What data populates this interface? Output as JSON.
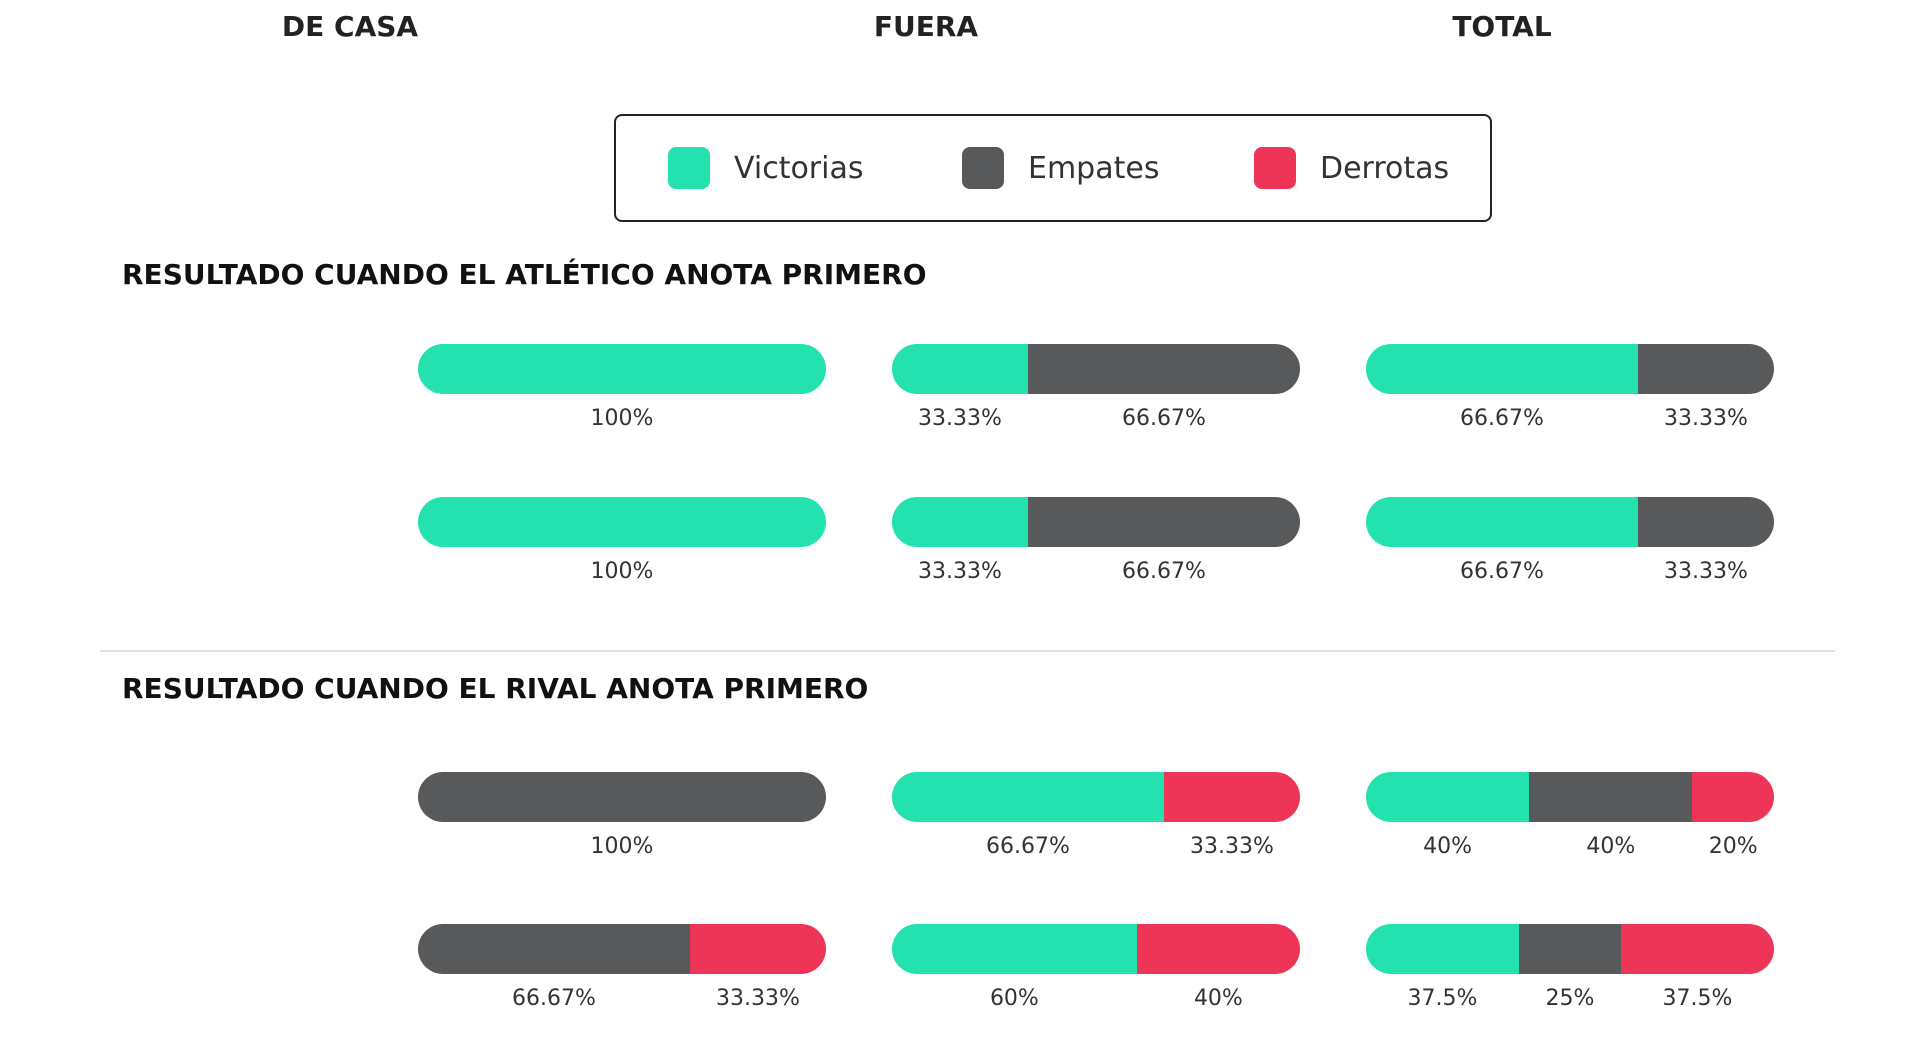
{
  "columns": [
    "DE CASA",
    "FUERA",
    "TOTAL"
  ],
  "legend": [
    {
      "label": "Victorias",
      "color": "#23e2b0"
    },
    {
      "label": "Empates",
      "color": "#58595b"
    },
    {
      "label": "Derrotas",
      "color": "#ee3558"
    }
  ],
  "sections": [
    {
      "title": "RESULTADO CUANDO EL ATLÉTICO ANOTA PRIMERO"
    },
    {
      "title": "RESULTADO CUANDO EL RIVAL ANOTA PRIMERO"
    }
  ],
  "chart_data": {
    "type": "bar",
    "orientation": "horizontal-stacked-100",
    "series_names": [
      "Victorias",
      "Empates",
      "Derrotas"
    ],
    "columns": [
      "DE CASA",
      "FUERA",
      "TOTAL"
    ],
    "sections": [
      {
        "title": "RESULTADO CUANDO EL ATLÉTICO ANOTA PRIMERO",
        "rows": [
          [
            {
              "victorias": 100,
              "empates": 0,
              "derrotas": 0,
              "labels": [
                "100%"
              ]
            },
            {
              "victorias": 33.33,
              "empates": 66.67,
              "derrotas": 0,
              "labels": [
                "33.33%",
                "66.67%"
              ]
            },
            {
              "victorias": 66.67,
              "empates": 33.33,
              "derrotas": 0,
              "labels": [
                "66.67%",
                "33.33%"
              ]
            }
          ],
          [
            {
              "victorias": 100,
              "empates": 0,
              "derrotas": 0,
              "labels": [
                "100%"
              ]
            },
            {
              "victorias": 33.33,
              "empates": 66.67,
              "derrotas": 0,
              "labels": [
                "33.33%",
                "66.67%"
              ]
            },
            {
              "victorias": 66.67,
              "empates": 33.33,
              "derrotas": 0,
              "labels": [
                "66.67%",
                "33.33%"
              ]
            }
          ]
        ]
      },
      {
        "title": "RESULTADO CUANDO EL RIVAL ANOTA PRIMERO",
        "rows": [
          [
            {
              "victorias": 0,
              "empates": 100,
              "derrotas": 0,
              "labels": [
                "100%"
              ]
            },
            {
              "victorias": 66.67,
              "empates": 0,
              "derrotas": 33.33,
              "labels": [
                "66.67%",
                "33.33%"
              ]
            },
            {
              "victorias": 40,
              "empates": 40,
              "derrotas": 20,
              "labels": [
                "40%",
                "40%",
                "20%"
              ]
            }
          ],
          [
            {
              "victorias": 0,
              "empates": 66.67,
              "derrotas": 33.33,
              "labels": [
                "66.67%",
                "33.33%"
              ]
            },
            {
              "victorias": 60,
              "empates": 0,
              "derrotas": 40,
              "labels": [
                "60%",
                "40%"
              ]
            },
            {
              "victorias": 37.5,
              "empates": 25,
              "derrotas": 37.5,
              "labels": [
                "37.5%",
                "25%",
                "37.5%"
              ]
            }
          ]
        ]
      }
    ]
  }
}
